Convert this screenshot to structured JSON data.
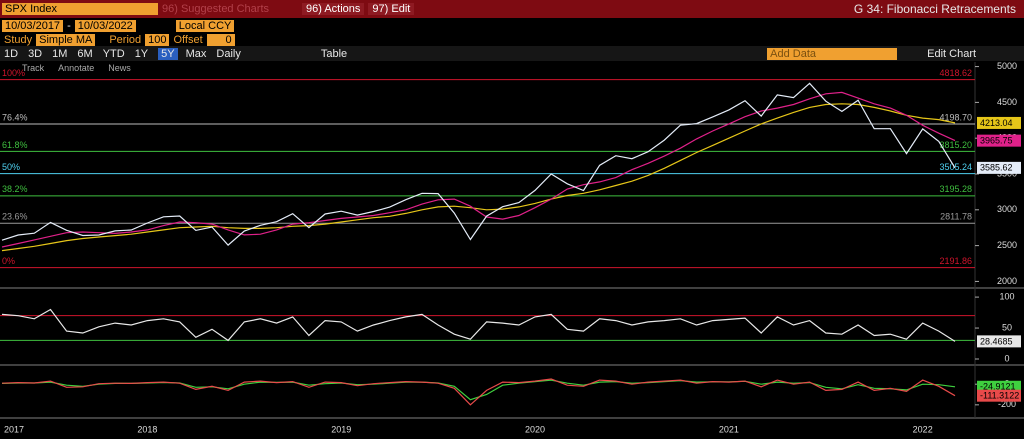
{
  "toolbar": {
    "security": "SPX Index",
    "suggested": "96) Suggested Charts",
    "actions": "96) Actions",
    "edit": "97) Edit",
    "function": "G 34: Fibonacci Retracements",
    "start_date": "10/03/2017",
    "date_separator": "-",
    "end_date": "10/03/2022",
    "currency": "Local CCY",
    "study_label": "Study",
    "study": "Simple MA",
    "period_label": "Period",
    "period": "100",
    "offset_label": "Offset",
    "offset": "0",
    "periods": [
      "1D",
      "3D",
      "1M",
      "6M",
      "YTD",
      "1Y",
      "5Y",
      "Max"
    ],
    "frequency": "Daily",
    "table": "Table",
    "add_data": "Add Data",
    "edit_chart": "Edit Chart",
    "tools": [
      "Track",
      "Annotate",
      "News"
    ]
  },
  "chart_data": [
    {
      "type": "line",
      "ylim": [
        1950,
        5050
      ],
      "yticks": [
        2000,
        2500,
        3000,
        3500,
        4000,
        4500,
        5000
      ],
      "value_tags": true,
      "print_levels": true,
      "levels": [
        {
          "name": "100%",
          "value": 4818.62,
          "color": "#d0142c"
        },
        {
          "name": "76.4%",
          "value": 4198.7,
          "label": "4198.70",
          "color": "#bdbdbd"
        },
        {
          "name": "61.8%",
          "value": 3815.2,
          "label": "3815.20",
          "color": "#3fbf3f"
        },
        {
          "name": "50%",
          "value": 3505.24,
          "color": "#4fd0f0"
        },
        {
          "name": "38.2%",
          "value": 3195.28,
          "color": "#3fbf3f"
        },
        {
          "name": "23.6%",
          "value": 2811.78,
          "color": "#9a9a9a"
        },
        {
          "name": "0%",
          "value": 2191.86,
          "color": "#d0142c"
        }
      ],
      "series": [
        {
          "color": "#e6c619",
          "values": [
            2430,
            2460,
            2490,
            2530,
            2570,
            2600,
            2620,
            2640,
            2660,
            2690,
            2720,
            2750,
            2760,
            2770,
            2750,
            2740,
            2740,
            2750,
            2770,
            2780,
            2800,
            2830,
            2860,
            2890,
            2910,
            2950,
            3000,
            3040,
            3050,
            3030,
            3000,
            3010,
            3040,
            3090,
            3150,
            3200,
            3230,
            3280,
            3340,
            3400,
            3480,
            3580,
            3690,
            3800,
            3900,
            4000,
            4100,
            4200,
            4280,
            4360,
            4430,
            4470,
            4480,
            4470,
            4430,
            4380,
            4320,
            4280,
            4260,
            4213.04
          ]
        },
        {
          "color": "#e0218a",
          "values": [
            2480,
            2530,
            2580,
            2630,
            2680,
            2690,
            2680,
            2670,
            2690,
            2720,
            2780,
            2830,
            2820,
            2800,
            2720,
            2650,
            2660,
            2720,
            2800,
            2820,
            2850,
            2880,
            2900,
            2920,
            2960,
            3000,
            3080,
            3140,
            3150,
            3050,
            2900,
            2870,
            2920,
            3030,
            3150,
            3290,
            3350,
            3390,
            3450,
            3560,
            3650,
            3750,
            3860,
            3990,
            4100,
            4200,
            4300,
            4380,
            4420,
            4470,
            4550,
            4620,
            4640,
            4560,
            4480,
            4420,
            4320,
            4180,
            4070,
            3965.75
          ]
        },
        {
          "color": "#e4ecf8",
          "values": [
            2575,
            2648,
            2674,
            2824,
            2714,
            2641,
            2648,
            2705,
            2718,
            2816,
            2902,
            2914,
            2712,
            2760,
            2507,
            2704,
            2784,
            2834,
            2946,
            2752,
            2942,
            2980,
            2926,
            2977,
            3038,
            3141,
            3231,
            3226,
            2954,
            2585,
            2912,
            3044,
            3100,
            3271,
            3500,
            3363,
            3270,
            3622,
            3756,
            3714,
            3811,
            3973,
            4181,
            4204,
            4298,
            4395,
            4523,
            4308,
            4605,
            4567,
            4766,
            4516,
            4374,
            4530,
            4132,
            4132,
            3785,
            4130,
            3955,
            3585.62
          ]
        }
      ]
    },
    {
      "type": "line",
      "ylim": [
        0,
        105
      ],
      "yticks": [
        0,
        50,
        100
      ],
      "value_tags": true,
      "levels": [
        {
          "value": 70,
          "color": "#d0142c"
        },
        {
          "value": 30,
          "color": "#3fbf3f"
        }
      ],
      "series": [
        {
          "color": "#e8e8e8",
          "values": [
            72,
            70,
            65,
            80,
            45,
            42,
            52,
            58,
            55,
            62,
            65,
            60,
            35,
            48,
            30,
            60,
            65,
            58,
            68,
            38,
            62,
            60,
            45,
            55,
            62,
            68,
            72,
            55,
            40,
            32,
            60,
            58,
            55,
            68,
            72,
            48,
            45,
            65,
            62,
            55,
            60,
            62,
            65,
            55,
            62,
            64,
            66,
            42,
            68,
            55,
            62,
            42,
            40,
            55,
            38,
            40,
            32,
            58,
            45,
            28.4685
          ]
        }
      ]
    },
    {
      "type": "line",
      "ylim": [
        -250,
        60
      ],
      "yticks": [
        -200,
        0
      ],
      "value_tags": true,
      "categories": [
        "2017",
        null,
        null,
        null,
        null,
        null,
        null,
        null,
        null,
        "2018",
        null,
        null,
        null,
        null,
        null,
        null,
        null,
        null,
        null,
        null,
        null,
        "2019",
        null,
        null,
        null,
        null,
        null,
        null,
        null,
        null,
        null,
        null,
        null,
        "2020",
        null,
        null,
        null,
        null,
        null,
        null,
        null,
        null,
        null,
        null,
        null,
        "2021",
        null,
        null,
        null,
        null,
        null,
        null,
        null,
        null,
        null,
        null,
        null,
        "2022",
        null,
        null
      ],
      "series": [
        {
          "color": "#3fd03f",
          "values": [
            8,
            12,
            12,
            20,
            -10,
            -20,
            0,
            8,
            8,
            12,
            16,
            12,
            -30,
            -25,
            -45,
            0,
            20,
            18,
            20,
            -10,
            5,
            12,
            -5,
            0,
            10,
            20,
            20,
            12,
            -20,
            -150,
            -100,
            -10,
            10,
            25,
            40,
            10,
            -10,
            20,
            25,
            10,
            15,
            25,
            35,
            20,
            22,
            22,
            28,
            0,
            20,
            10,
            15,
            -30,
            -45,
            -5,
            -40,
            -45,
            -55,
            0,
            -5,
            -24.9121
          ]
        },
        {
          "color": "#e84a4a",
          "values": [
            10,
            15,
            12,
            30,
            -30,
            -25,
            5,
            10,
            8,
            15,
            20,
            10,
            -50,
            -20,
            -60,
            20,
            30,
            15,
            25,
            -30,
            20,
            15,
            -15,
            5,
            15,
            25,
            20,
            10,
            -40,
            -200,
            -60,
            20,
            15,
            30,
            50,
            -10,
            -20,
            40,
            30,
            0,
            20,
            30,
            40,
            10,
            25,
            20,
            30,
            -25,
            40,
            0,
            20,
            -60,
            -50,
            20,
            -60,
            -40,
            -70,
            40,
            -20,
            -111.3122
          ]
        }
      ]
    }
  ]
}
